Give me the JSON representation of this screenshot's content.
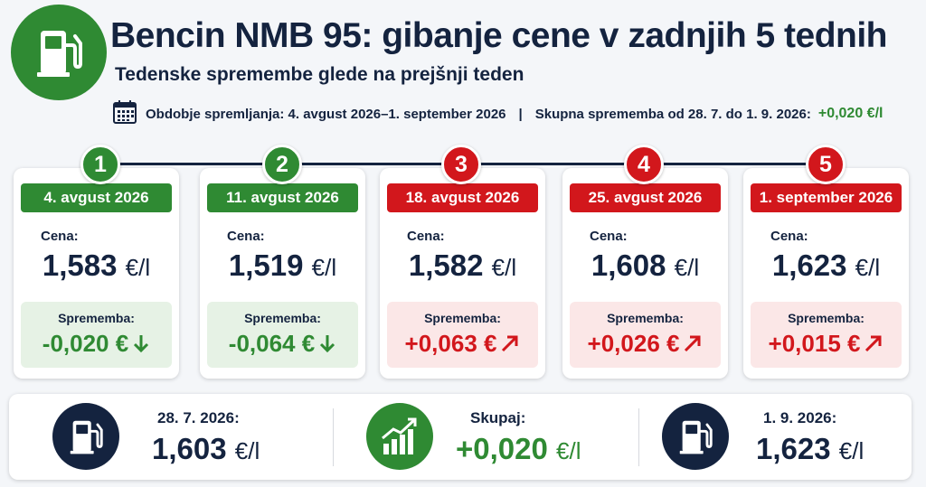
{
  "header": {
    "title": "Bencin NMB 95: gibanje cene v zadnjih 5 tednih",
    "subtitle": "Tedenske spremembe glede na prejšnji teden",
    "period_label": "Obdobje spremljanja: 4. avgust 2026–1. september 2026",
    "separator": "|",
    "total_label": "Skupna sprememba od 28. 7. do 1. 9. 2026:",
    "total_value": "+0,020 €/l"
  },
  "labels": {
    "price": "Cena:",
    "change": "Sprememba:",
    "unit": "€/l"
  },
  "weeks": [
    {
      "num": "1",
      "date": "4. avgust 2026",
      "price": "1,583",
      "change": "-0,020 €",
      "direction": "down",
      "status": "green"
    },
    {
      "num": "2",
      "date": "11. avgust 2026",
      "price": "1,519",
      "change": "-0,064 €",
      "direction": "down",
      "status": "green"
    },
    {
      "num": "3",
      "date": "18. avgust 2026",
      "price": "1,582",
      "change": "+0,063 €",
      "direction": "up",
      "status": "red"
    },
    {
      "num": "4",
      "date": "25. avgust 2026",
      "price": "1,608",
      "change": "+0,026 €",
      "direction": "up",
      "status": "red"
    },
    {
      "num": "5",
      "date": "1. september 2026",
      "price": "1,623",
      "change": "+0,015 €",
      "direction": "up",
      "status": "red"
    }
  ],
  "summary": {
    "start": {
      "label": "28. 7. 2026:",
      "value": "1,603",
      "unit": "€/l",
      "icon": "fuel-pump-icon"
    },
    "total": {
      "label": "Skupaj:",
      "value": "+0,020",
      "unit": "€/l",
      "icon": "growth-chart-icon"
    },
    "end": {
      "label": "1. 9. 2026:",
      "value": "1,623",
      "unit": "€/l",
      "icon": "fuel-pump-icon"
    }
  },
  "colors": {
    "green": "#2f8a33",
    "red": "#d2171c",
    "navy": "#14233f"
  }
}
